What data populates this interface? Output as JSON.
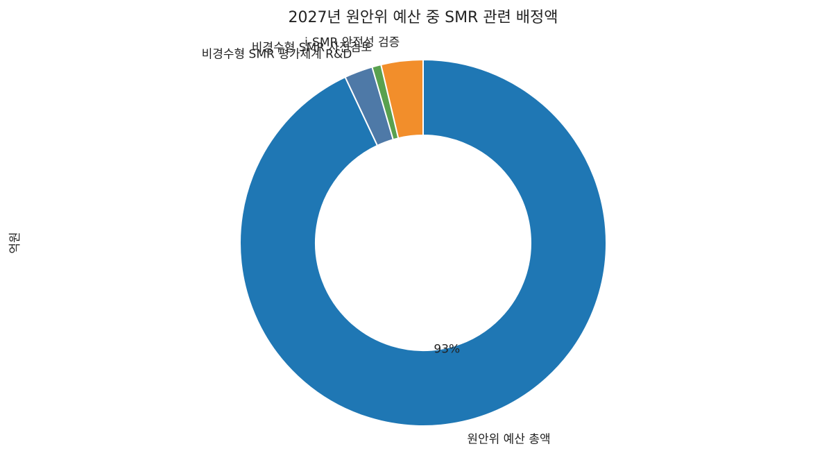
{
  "chart_data": {
    "type": "pie",
    "title": "2027년 원안위 예산 중 SMR 관련 배정액",
    "y_label": "억원",
    "categories": [
      "원안위 예산 총액",
      "비경수형 SMR 평가체계 R&D",
      "비경수형 SMR 사전검토",
      "i-SMR 안전성 검증"
    ],
    "values": [
      93,
      2.5,
      0.8,
      3.7
    ],
    "value_labels": [
      "93%",
      null,
      null,
      null
    ],
    "colors": [
      "#1f77b4",
      "#4e79a7",
      "#59a14f",
      "#f28e2b"
    ]
  }
}
